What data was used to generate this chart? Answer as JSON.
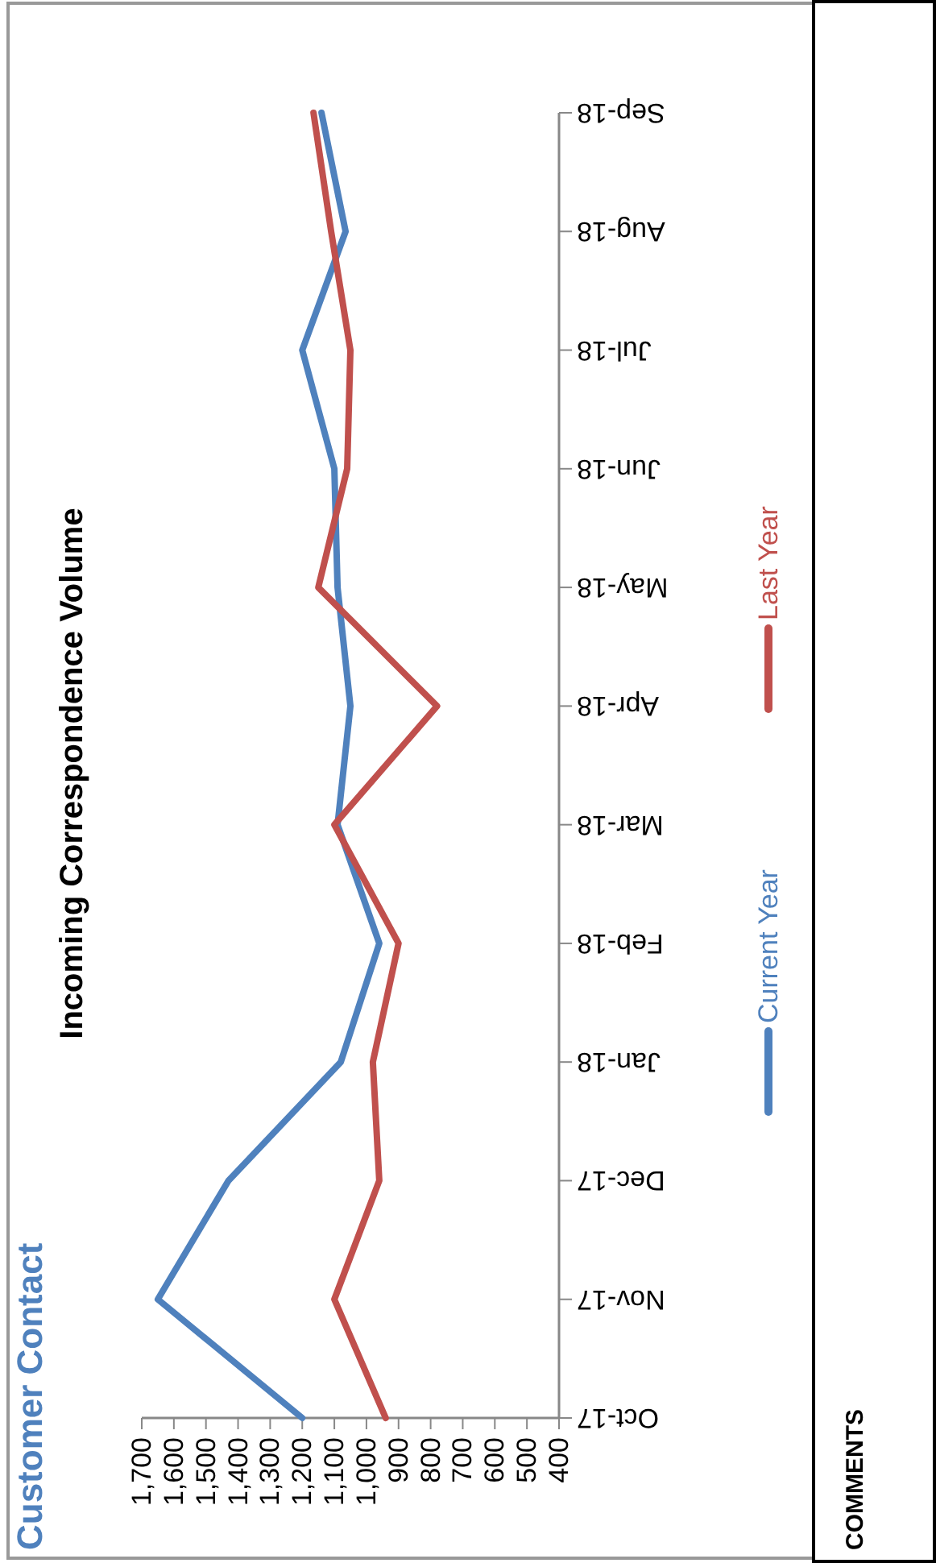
{
  "chart_data": {
    "type": "line",
    "title": "Incoming Correspondence Volume",
    "orientation": "horizontal",
    "categories": [
      "Sep-18",
      "Aug-18",
      "Jul-18",
      "Jun-18",
      "May-18",
      "Apr-18",
      "Mar-18",
      "Feb-18",
      "Jan-18",
      "Dec-17",
      "Nov-17",
      "Oct-17"
    ],
    "series": [
      {
        "name": "Current Year",
        "color": "#4f81bd",
        "values": [
          1140,
          1065,
          1200,
          1100,
          1090,
          1050,
          1090,
          960,
          1080,
          1430,
          1650,
          1200
        ]
      },
      {
        "name": "Last Year",
        "color": "#c0504d",
        "values": [
          1165,
          1110,
          1050,
          1060,
          1150,
          780,
          1100,
          900,
          980,
          960,
          1100,
          940
        ]
      }
    ],
    "xlim": [
      1700,
      400
    ],
    "xticks": [
      {
        "value": 1700,
        "label": "1,700"
      },
      {
        "value": 1600,
        "label": "1,600"
      },
      {
        "value": 1500,
        "label": "1,500"
      },
      {
        "value": 1400,
        "label": "1,400"
      },
      {
        "value": 1300,
        "label": "1,300"
      },
      {
        "value": 1200,
        "label": "1,200"
      },
      {
        "value": 1100,
        "label": "1,100"
      },
      {
        "value": 1000,
        "label": "1,000"
      },
      {
        "value": 900,
        "label": "900"
      },
      {
        "value": 800,
        "label": "800"
      },
      {
        "value": 700,
        "label": "700"
      },
      {
        "value": 600,
        "label": "600"
      },
      {
        "value": 500,
        "label": "500"
      },
      {
        "value": 400,
        "label": "400"
      }
    ],
    "legend": "right",
    "grid": false,
    "marker": "none",
    "line_style": "solid",
    "annotations": [
      "Customer Contact",
      "COMMENTS"
    ]
  }
}
